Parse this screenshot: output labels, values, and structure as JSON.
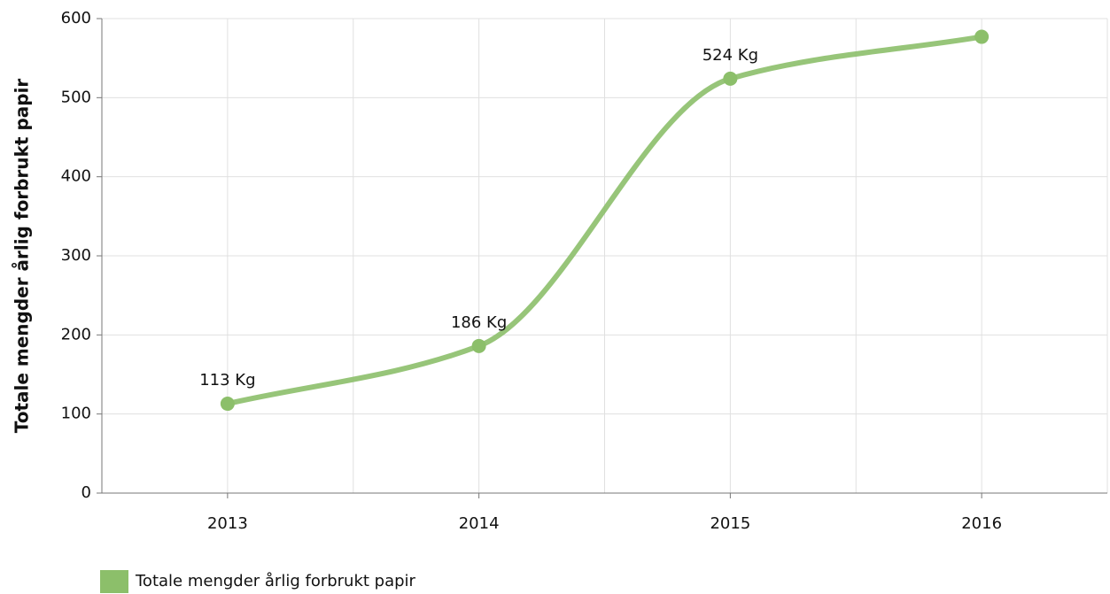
{
  "chart_data": {
    "type": "line",
    "y_label": "Totale mengder årlig forbrukt papir",
    "categories": [
      "2013",
      "2014",
      "2015",
      "2016"
    ],
    "series": [
      {
        "name": "Totale mengder årlig forbrukt papir",
        "color": "#8cbf6a",
        "values": [
          113,
          186,
          524,
          577
        ],
        "value_labels": [
          "113 Kg",
          "186 Kg",
          "524 Kg",
          null
        ]
      }
    ],
    "ylim": [
      0,
      600
    ],
    "yticks": [
      0,
      100,
      200,
      300,
      400,
      500,
      600
    ],
    "grid": true,
    "legend": "bottom-left"
  }
}
